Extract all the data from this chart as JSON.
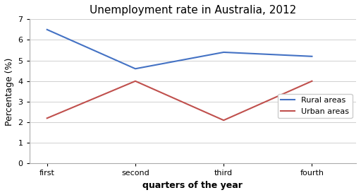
{
  "title": "Unemployment rate in Australia, 2012",
  "xlabel": "quarters of the year",
  "ylabel": "Percentage (%)",
  "x_labels": [
    "first",
    "second",
    "third",
    "fourth"
  ],
  "x_positions": [
    0,
    1,
    2,
    3
  ],
  "rural": [
    6.5,
    4.6,
    5.4,
    5.2
  ],
  "urban": [
    2.2,
    4.0,
    2.1,
    4.0
  ],
  "rural_color": "#4472C4",
  "urban_color": "#C0504D",
  "ylim": [
    0,
    7
  ],
  "yticks": [
    0,
    1,
    2,
    3,
    4,
    5,
    6,
    7
  ],
  "legend_labels": [
    "Rural areas",
    "Urban areas"
  ],
  "background_color": "#ffffff",
  "title_fontsize": 11,
  "axis_label_fontsize": 9,
  "tick_fontsize": 8,
  "legend_fontsize": 8
}
